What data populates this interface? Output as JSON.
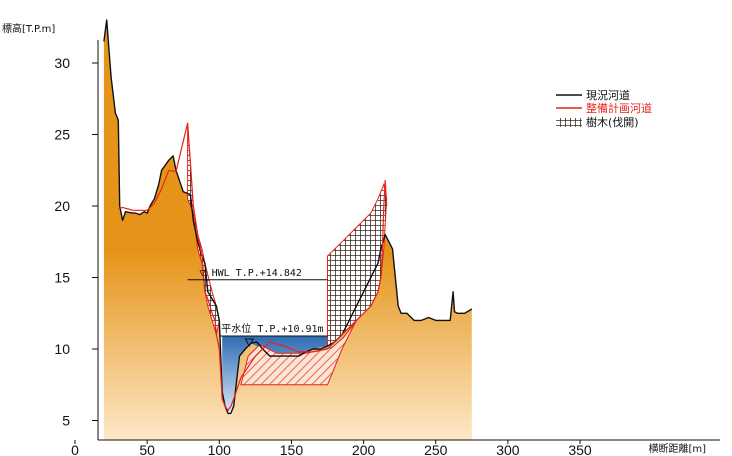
{
  "chart_data": {
    "type": "area",
    "ylabel": "標高[T.P.m]",
    "xlabel": "横断距離[m]",
    "xlim": [
      0,
      450
    ],
    "ylim": [
      3.5,
      32.5
    ],
    "x_ticks": [
      0,
      50,
      100,
      150,
      200,
      250,
      300,
      350
    ],
    "y_ticks": [
      5,
      10,
      15,
      20,
      25,
      30
    ],
    "grid": false,
    "legend_placement": "top-right",
    "series": [
      {
        "name": "現況河道",
        "color": "#111111",
        "points": [
          [
            20,
            31.5
          ],
          [
            22,
            33
          ],
          [
            25,
            29
          ],
          [
            28,
            26.5
          ],
          [
            30,
            26
          ],
          [
            31,
            20
          ],
          [
            33,
            19
          ],
          [
            35,
            19.6
          ],
          [
            40,
            19.5
          ],
          [
            42,
            19.5
          ],
          [
            45,
            19.4
          ],
          [
            48,
            19.6
          ],
          [
            50,
            19.5
          ],
          [
            52,
            20
          ],
          [
            55,
            20.5
          ],
          [
            58,
            21.5
          ],
          [
            60,
            22.5
          ],
          [
            65,
            23.2
          ],
          [
            68,
            23.5
          ],
          [
            70,
            22.5
          ],
          [
            75,
            21
          ],
          [
            80,
            20.8
          ],
          [
            82,
            19
          ],
          [
            85,
            17.5
          ],
          [
            88,
            16.5
          ],
          [
            90,
            16
          ],
          [
            92,
            14
          ],
          [
            95,
            13.5
          ],
          [
            98,
            13
          ],
          [
            100,
            12
          ],
          [
            102,
            7
          ],
          [
            104,
            6
          ],
          [
            106,
            5.5
          ],
          [
            108,
            5.5
          ],
          [
            110,
            6
          ],
          [
            114,
            9.5
          ],
          [
            118,
            10
          ],
          [
            122,
            10.4
          ],
          [
            126,
            10.5
          ],
          [
            130,
            10
          ],
          [
            135,
            9.5
          ],
          [
            140,
            9.5
          ],
          [
            148,
            9.5
          ],
          [
            155,
            9.5
          ],
          [
            160,
            9.8
          ],
          [
            165,
            10
          ],
          [
            170,
            10
          ],
          [
            175,
            10.2
          ],
          [
            180,
            10.5
          ],
          [
            185,
            11
          ],
          [
            190,
            12
          ],
          [
            195,
            13
          ],
          [
            200,
            14
          ],
          [
            205,
            15
          ],
          [
            210,
            16
          ],
          [
            212,
            17
          ],
          [
            215,
            18
          ],
          [
            220,
            17
          ],
          [
            224,
            13
          ],
          [
            226,
            12.5
          ],
          [
            230,
            12.5
          ],
          [
            235,
            12
          ],
          [
            240,
            12
          ],
          [
            245,
            12.2
          ],
          [
            250,
            12
          ],
          [
            255,
            12
          ],
          [
            260,
            12
          ],
          [
            262,
            14
          ],
          [
            263,
            12.6
          ],
          [
            265,
            12.5
          ],
          [
            270,
            12.5
          ],
          [
            275,
            12.8
          ]
        ]
      },
      {
        "name": "整備計画河道",
        "color": "#e8231a",
        "points": [
          [
            30,
            19.8
          ],
          [
            33,
            19.9
          ],
          [
            40,
            19.7
          ],
          [
            50,
            19.7
          ],
          [
            55,
            20.2
          ],
          [
            60,
            21.2
          ],
          [
            65,
            22.5
          ],
          [
            70,
            22.4
          ],
          [
            78,
            25.8
          ],
          [
            80,
            23
          ],
          [
            82,
            20
          ],
          [
            85,
            18
          ],
          [
            88,
            16.5
          ],
          [
            90,
            14
          ],
          [
            92,
            13.5
          ],
          [
            95,
            12.5
          ],
          [
            97,
            12
          ],
          [
            98,
            11
          ],
          [
            100,
            10
          ],
          [
            102,
            6.5
          ],
          [
            104,
            6
          ],
          [
            106,
            5.7
          ],
          [
            108,
            6
          ],
          [
            110,
            6.5
          ],
          [
            115,
            8
          ],
          [
            125,
            9.5
          ],
          [
            135,
            10.5
          ],
          [
            145,
            10.2
          ],
          [
            155,
            9.8
          ],
          [
            165,
            9.8
          ],
          [
            175,
            10
          ],
          [
            185,
            11
          ],
          [
            195,
            12
          ],
          [
            200,
            12.5
          ],
          [
            205,
            13
          ],
          [
            210,
            14
          ],
          [
            212,
            15
          ],
          [
            213,
            17
          ],
          [
            214,
            20
          ],
          [
            215,
            21.8
          ],
          [
            216,
            20
          ]
        ]
      }
    ],
    "annotations": [
      {
        "text": "▽ HWL T.P.+14.842",
        "level": 14.842,
        "x_from": 78,
        "x_to": 175
      },
      {
        "text": "平水位 T.P.+10.91m",
        "level": 10.91,
        "x_from": 100,
        "x_to": 175
      }
    ],
    "legend": [
      {
        "label": "現況河道",
        "color": "#111111",
        "kind": "line"
      },
      {
        "label": "整備計画河道",
        "color": "#e8231a",
        "kind": "line"
      },
      {
        "label": "樹木(伐開)",
        "color": "#222222",
        "kind": "hatch"
      }
    ],
    "colors": {
      "terrain_top": "#e59419",
      "terrain_bottom": "#fde8c8",
      "water_top": "#2f6bb3",
      "water_bottom": "#d9e9f7",
      "excavation_hatch": "#e8231a",
      "tree_hatch": "#3a2a22"
    }
  },
  "terrain": {
    "points": [
      [
        20,
        31.5
      ],
      [
        22,
        33
      ],
      [
        25,
        29
      ],
      [
        28,
        26.5
      ],
      [
        30,
        26
      ],
      [
        31,
        20
      ],
      [
        33,
        19
      ],
      [
        35,
        19.6
      ],
      [
        40,
        19.5
      ],
      [
        42,
        19.5
      ],
      [
        45,
        19.4
      ],
      [
        48,
        19.6
      ],
      [
        50,
        19.5
      ],
      [
        52,
        20
      ],
      [
        55,
        20.5
      ],
      [
        58,
        21.5
      ],
      [
        60,
        22.5
      ],
      [
        65,
        23.2
      ],
      [
        68,
        23.5
      ],
      [
        70,
        22.5
      ],
      [
        75,
        21
      ],
      [
        80,
        20.8
      ],
      [
        82,
        19
      ],
      [
        85,
        17.5
      ],
      [
        88,
        16.5
      ],
      [
        90,
        16
      ],
      [
        92,
        14
      ],
      [
        95,
        13.5
      ],
      [
        98,
        13
      ],
      [
        100,
        12
      ],
      [
        102,
        7
      ],
      [
        104,
        6
      ],
      [
        106,
        5.5
      ],
      [
        108,
        5.5
      ],
      [
        110,
        6
      ],
      [
        114,
        9.5
      ],
      [
        118,
        10
      ],
      [
        122,
        10.4
      ],
      [
        126,
        10.5
      ],
      [
        130,
        10
      ],
      [
        135,
        9.5
      ],
      [
        140,
        9.5
      ],
      [
        148,
        9.5
      ],
      [
        155,
        9.5
      ],
      [
        160,
        9.8
      ],
      [
        165,
        10
      ],
      [
        170,
        10
      ],
      [
        175,
        10.2
      ],
      [
        180,
        10.5
      ],
      [
        185,
        11
      ],
      [
        190,
        12
      ],
      [
        195,
        13
      ],
      [
        200,
        14
      ],
      [
        205,
        15
      ],
      [
        210,
        16
      ],
      [
        212,
        17
      ],
      [
        215,
        18
      ],
      [
        220,
        17
      ],
      [
        224,
        13
      ],
      [
        226,
        12.5
      ],
      [
        230,
        12.5
      ],
      [
        235,
        12
      ],
      [
        240,
        12
      ],
      [
        245,
        12.2
      ],
      [
        250,
        12
      ],
      [
        255,
        12
      ],
      [
        260,
        12
      ],
      [
        262,
        14
      ],
      [
        263,
        12.6
      ],
      [
        265,
        12.5
      ],
      [
        270,
        12.5
      ],
      [
        275,
        12.8
      ]
    ]
  },
  "water": {
    "level": 10.91,
    "points": [
      [
        102,
        10.91
      ],
      [
        175,
        10.91
      ],
      [
        175,
        10.2
      ],
      [
        165,
        10
      ],
      [
        155,
        9.5
      ],
      [
        140,
        9.5
      ],
      [
        130,
        10
      ],
      [
        122,
        10.4
      ],
      [
        118,
        10
      ],
      [
        114,
        9.5
      ],
      [
        110,
        6
      ],
      [
        106,
        5.5
      ],
      [
        104,
        6
      ],
      [
        102,
        7
      ]
    ]
  },
  "excavation": {
    "points": [
      [
        115,
        7.5
      ],
      [
        120,
        9.5
      ],
      [
        128,
        10.3
      ],
      [
        140,
        9.7
      ],
      [
        160,
        9.7
      ],
      [
        178,
        10.1
      ],
      [
        186,
        10.8
      ],
      [
        195,
        12
      ],
      [
        185,
        10
      ],
      [
        175,
        7.5
      ]
    ]
  },
  "trees": [
    {
      "points": [
        [
          78,
          25.8
        ],
        [
          80,
          23
        ],
        [
          82,
          20
        ],
        [
          85,
          18
        ],
        [
          88,
          17
        ],
        [
          90,
          16
        ],
        [
          95,
          14
        ],
        [
          98,
          13
        ],
        [
          100,
          12
        ],
        [
          98,
          11
        ],
        [
          95,
          12
        ],
        [
          92,
          13
        ],
        [
          90,
          14
        ],
        [
          88,
          16
        ],
        [
          85,
          17
        ],
        [
          82,
          19.5
        ],
        [
          78,
          20.5
        ]
      ]
    },
    {
      "points": [
        [
          175,
          16.5
        ],
        [
          185,
          17.5
        ],
        [
          195,
          18.5
        ],
        [
          205,
          19.5
        ],
        [
          210,
          20.5
        ],
        [
          214,
          21.5
        ],
        [
          216,
          20.5
        ],
        [
          214,
          17
        ],
        [
          212,
          15
        ],
        [
          210,
          14
        ],
        [
          205,
          13
        ],
        [
          200,
          12.5
        ],
        [
          195,
          12
        ],
        [
          185,
          11
        ],
        [
          180,
          10.5
        ],
        [
          175,
          10.2
        ]
      ]
    }
  ]
}
